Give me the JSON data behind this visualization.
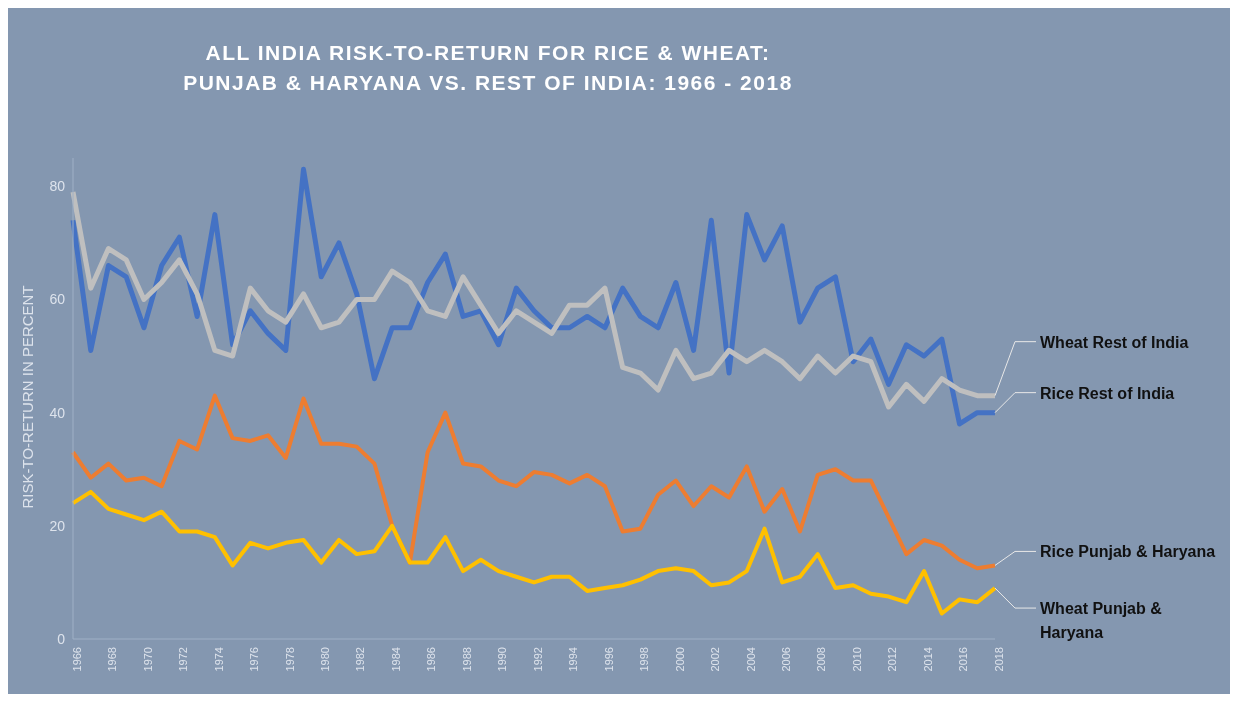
{
  "chart_data": {
    "type": "line",
    "title": "ALL INDIA RISK-TO-RETURN FOR RICE & WHEAT:\nPUNJAB & HARYANA VS. REST OF INDIA: 1966 - 2018",
    "ylabel": "RISK-TO-RETURN IN PERCENT",
    "categories": [
      "1966",
      null,
      "1968",
      null,
      "1970",
      null,
      "1972",
      null,
      "1974",
      null,
      "1976",
      null,
      "1978",
      null,
      "1980",
      null,
      "1982",
      null,
      "1984",
      null,
      "1986",
      null,
      "1988",
      null,
      "1990",
      null,
      "1992",
      null,
      "1994",
      null,
      "1996",
      null,
      "1998",
      null,
      "2000",
      null,
      "2002",
      null,
      "2004",
      null,
      "2006",
      null,
      "2008",
      null,
      "2010",
      null,
      "2012",
      null,
      "2014",
      null,
      "2016",
      null,
      "2018"
    ],
    "series": [
      {
        "name": "Rice Rest of  India",
        "color": "#4472c4",
        "values": [
          74,
          51,
          66,
          64,
          55,
          66,
          71,
          57,
          75,
          52,
          58,
          54,
          51,
          83,
          64,
          70,
          61,
          46,
          55,
          55,
          63,
          68,
          57,
          58,
          52,
          62,
          58,
          55,
          55,
          57,
          55,
          62,
          57,
          55,
          63,
          51,
          74,
          47,
          75,
          67,
          73,
          56,
          62,
          64,
          49,
          53,
          45,
          52,
          50,
          53,
          38,
          40,
          40
        ]
      },
      {
        "name": "Wheat Rest of India",
        "color": "#bfbfbf",
        "values": [
          79,
          62,
          69,
          67,
          60,
          63,
          67,
          61,
          51,
          50,
          62,
          58,
          56,
          61,
          55,
          56,
          60,
          60,
          65,
          63,
          58,
          57,
          64,
          59,
          54,
          58,
          56,
          54,
          59,
          59,
          62,
          48,
          47,
          44,
          51,
          46,
          47,
          51,
          49,
          51,
          49,
          46,
          50,
          47,
          50,
          49,
          41,
          45,
          42,
          46,
          44,
          43,
          43
        ]
      },
      {
        "name": "Rice Punjab & Haryana",
        "color": "#ed7d31",
        "values": [
          33,
          28.5,
          31,
          28,
          28.5,
          27,
          35,
          33.5,
          43,
          35.5,
          35,
          36,
          32,
          42.5,
          34.5,
          34.5,
          34,
          31,
          20,
          13.5,
          33,
          40,
          31,
          30.5,
          28,
          27,
          29.5,
          29,
          27.5,
          29,
          27,
          19,
          19.5,
          25.5,
          28,
          23.5,
          27,
          25,
          30.5,
          22.5,
          26.5,
          19,
          29,
          30,
          28,
          28,
          21.5,
          15,
          17.5,
          16.5,
          14,
          12.5,
          13
        ]
      },
      {
        "name": "Wheat Punjab & Haryana",
        "color": "#ffc000",
        "values": [
          24,
          26,
          23,
          22,
          21,
          22.5,
          19,
          19,
          18,
          13,
          17,
          16,
          17,
          17.5,
          13.5,
          17.5,
          15,
          15.5,
          20,
          13.5,
          13.5,
          18,
          12,
          14,
          12,
          11,
          10,
          11,
          11,
          8.5,
          9,
          9.5,
          10.5,
          12,
          12.5,
          12,
          9.5,
          10,
          12,
          19.5,
          10,
          11,
          15,
          9,
          9.5,
          8,
          7.5,
          6.5,
          12,
          4.5,
          7,
          6.5,
          9
        ]
      }
    ],
    "ylim": [
      0,
      85
    ],
    "yticks": [
      0,
      20,
      40,
      60,
      80
    ],
    "grid": false,
    "legend": false
  }
}
